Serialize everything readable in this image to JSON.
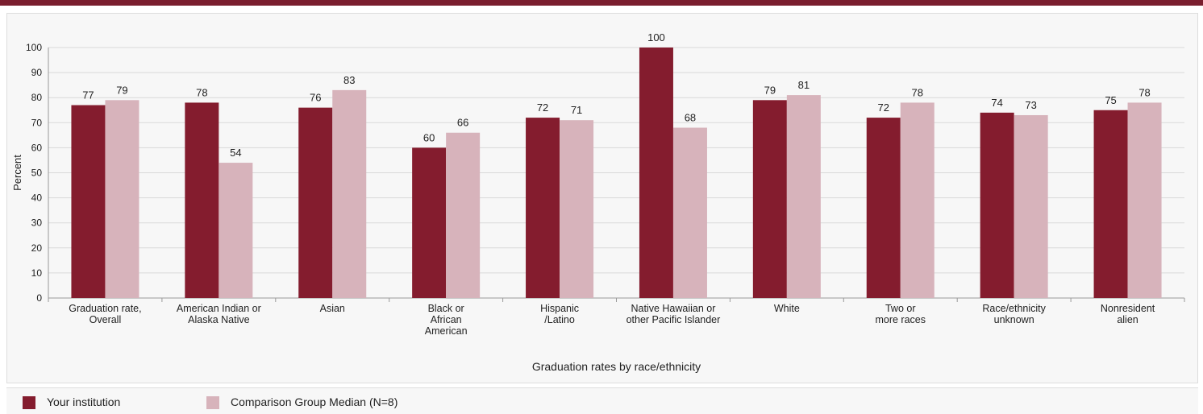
{
  "colors": {
    "your_institution": "#841c2e",
    "comparison": "#d7b3bb",
    "brand_rule": "#7a1e2e"
  },
  "chart_data": {
    "type": "bar",
    "title": "",
    "xlabel": "Graduation rates by race/ethnicity",
    "ylabel": "Percent",
    "ylim": [
      0,
      100
    ],
    "yticks": [
      0,
      10,
      20,
      30,
      40,
      50,
      60,
      70,
      80,
      90,
      100
    ],
    "grid": true,
    "legend_position": "bottom-left",
    "categories": [
      "Graduation rate, Overall",
      "American Indian or Alaska Native",
      "Asian",
      "Black or African American",
      "Hispanic /Latino",
      "Native Hawaiian or other Pacific Islander",
      "White",
      "Two or more races",
      "Race/ethnicity unknown",
      "Nonresident alien"
    ],
    "category_label_lines": [
      [
        "Graduation rate,",
        "Overall"
      ],
      [
        "American Indian or",
        "Alaska Native"
      ],
      [
        "Asian"
      ],
      [
        "Black or",
        "African",
        "American"
      ],
      [
        "Hispanic",
        "/Latino"
      ],
      [
        "Native Hawaiian or",
        "other Pacific Islander"
      ],
      [
        "White"
      ],
      [
        "Two or",
        "more races"
      ],
      [
        "Race/ethnicity",
        "unknown"
      ],
      [
        "Nonresident",
        "alien"
      ]
    ],
    "series": [
      {
        "name": "Your institution",
        "values": [
          77,
          78,
          76,
          60,
          72,
          100,
          79,
          72,
          74,
          75
        ]
      },
      {
        "name": "Comparison Group Median (N=8)",
        "values": [
          79,
          54,
          83,
          66,
          71,
          68,
          81,
          78,
          73,
          78
        ]
      }
    ]
  },
  "legend": {
    "items": [
      {
        "label": "Your institution",
        "color": "#841c2e"
      },
      {
        "label": "Comparison Group Median (N=8)",
        "color": "#d7b3bb"
      }
    ]
  }
}
